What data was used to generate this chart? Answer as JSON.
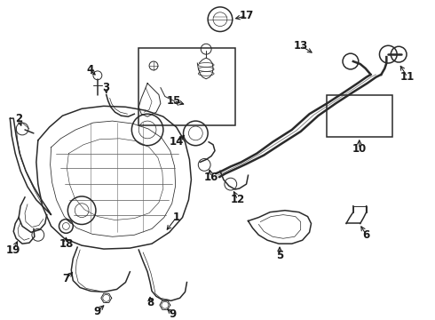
{
  "background_color": "#ffffff",
  "fig_width": 4.9,
  "fig_height": 3.6,
  "dpi": 100,
  "line_color": "#2a2a2a",
  "label_color": "#1a1a1a",
  "label_fontsize": 8.5,
  "arrow_fontsize": 8.5,
  "lw_main": 1.1,
  "lw_thin": 0.7,
  "lw_thick": 1.8
}
